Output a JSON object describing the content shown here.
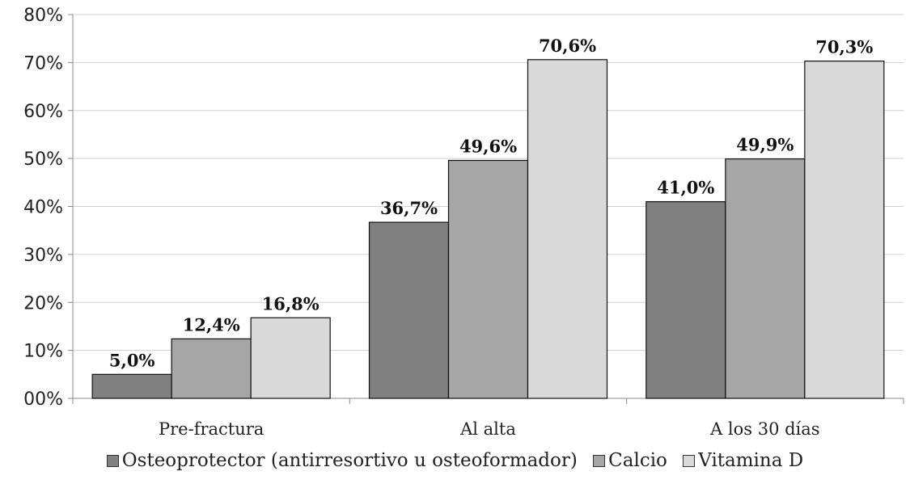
{
  "chart_data": {
    "type": "bar",
    "categories": [
      "Pre-fractura",
      "Al alta",
      "A los 30 días"
    ],
    "series": [
      {
        "name": "Osteoprotector (antirresortivo u osteoformador)",
        "values": [
          5.0,
          36.7,
          41.0
        ],
        "labels": [
          "5,0%",
          "36,7%",
          "41,0%"
        ],
        "color": "#808080"
      },
      {
        "name": "Calcio",
        "values": [
          12.4,
          49.6,
          49.9
        ],
        "labels": [
          "12,4%",
          "49,6%",
          "49,9%"
        ],
        "color": "#a6a6a6"
      },
      {
        "name": "Vitamina D",
        "values": [
          16.8,
          70.6,
          70.3
        ],
        "labels": [
          "16,8%",
          "70,6%",
          "70,3%"
        ],
        "color": "#d9d9d9"
      }
    ],
    "ylim": [
      0,
      80
    ],
    "yticks": [
      0,
      10,
      20,
      30,
      40,
      50,
      60,
      70,
      80
    ],
    "ytick_labels": [
      "00%",
      "10%",
      "20%",
      "30%",
      "40%",
      "50%",
      "60%",
      "70%",
      "80%"
    ],
    "grid": true,
    "legend_position": "bottom",
    "title": "",
    "xlabel": "",
    "ylabel": ""
  }
}
